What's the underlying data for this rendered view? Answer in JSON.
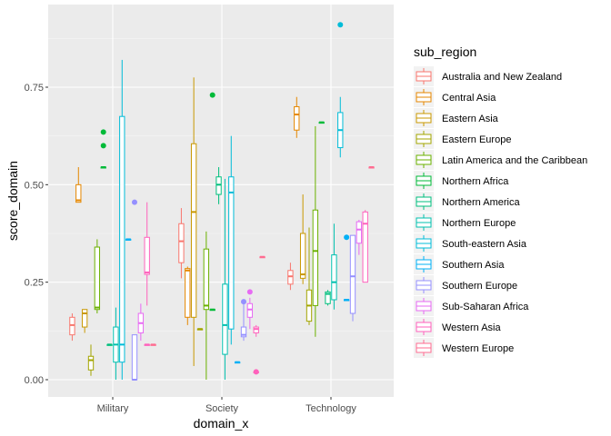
{
  "chart_data": {
    "type": "boxplot",
    "xlabel": "domain_x",
    "ylabel": "score_domain",
    "ylim": [
      -0.04,
      0.95
    ],
    "yticks": [
      0.0,
      0.25,
      0.5,
      0.75
    ],
    "ytick_labels": [
      "0.00",
      "0.25",
      "0.50",
      "0.75"
    ],
    "categories": [
      "Military",
      "Society",
      "Technology"
    ],
    "grid": true,
    "legend": {
      "title": "sub_region",
      "placement": "right"
    },
    "series": [
      {
        "name": "Australia and New Zealand",
        "color": "#F8766D",
        "boxes": [
          {
            "category": "Military",
            "min": 0.1,
            "q1": 0.115,
            "median": 0.14,
            "q3": 0.16,
            "max": 0.17,
            "outliers": []
          },
          {
            "category": "Society",
            "min": 0.26,
            "q1": 0.3,
            "median": 0.355,
            "q3": 0.4,
            "max": 0.44,
            "outliers": []
          },
          {
            "category": "Technology",
            "min": 0.23,
            "q1": 0.245,
            "median": 0.265,
            "q3": 0.28,
            "max": 0.3,
            "outliers": []
          }
        ]
      },
      {
        "name": "Central Asia",
        "color": "#E58700",
        "boxes": [
          {
            "category": "Military",
            "min": 0.455,
            "q1": 0.455,
            "median": 0.46,
            "q3": 0.5,
            "max": 0.545,
            "outliers": []
          },
          {
            "category": "Society",
            "min": 0.14,
            "q1": 0.16,
            "median": 0.28,
            "q3": 0.285,
            "max": 0.29,
            "outliers": []
          },
          {
            "category": "Technology",
            "min": 0.62,
            "q1": 0.64,
            "median": 0.68,
            "q3": 0.7,
            "max": 0.725,
            "outliers": []
          }
        ]
      },
      {
        "name": "Eastern Asia",
        "color": "#C99800",
        "boxes": [
          {
            "category": "Military",
            "min": 0.12,
            "q1": 0.135,
            "median": 0.17,
            "q3": 0.18,
            "max": 0.18,
            "outliers": []
          },
          {
            "category": "Society",
            "min": 0.035,
            "q1": 0.16,
            "median": 0.43,
            "q3": 0.605,
            "max": 0.775,
            "outliers": []
          },
          {
            "category": "Technology",
            "min": 0.245,
            "q1": 0.26,
            "median": 0.27,
            "q3": 0.375,
            "max": 0.475,
            "outliers": []
          }
        ]
      },
      {
        "name": "Eastern Europe",
        "color": "#A3A500",
        "boxes": [
          {
            "category": "Military",
            "min": 0.01,
            "q1": 0.025,
            "median": 0.05,
            "q3": 0.06,
            "max": 0.09,
            "outliers": []
          },
          {
            "category": "Society",
            "min": 0.13,
            "q1": 0.13,
            "median": 0.13,
            "q3": 0.13,
            "max": 0.13,
            "outliers": []
          },
          {
            "category": "Technology",
            "min": 0.14,
            "q1": 0.15,
            "median": 0.19,
            "q3": 0.23,
            "max": 0.39,
            "outliers": []
          }
        ]
      },
      {
        "name": "Latin America and the Caribbean",
        "color": "#6BB100",
        "boxes": [
          {
            "category": "Military",
            "min": 0.17,
            "q1": 0.18,
            "median": 0.185,
            "q3": 0.34,
            "max": 0.36,
            "outliers": []
          },
          {
            "category": "Society",
            "min": 0.0,
            "q1": 0.18,
            "median": 0.19,
            "q3": 0.335,
            "max": 0.38,
            "outliers": []
          },
          {
            "category": "Technology",
            "min": 0.11,
            "q1": 0.19,
            "median": 0.33,
            "q3": 0.435,
            "max": 0.65,
            "outliers": []
          }
        ]
      },
      {
        "name": "Northern Africa",
        "color": "#00BA38",
        "boxes": [
          {
            "category": "Military",
            "min": 0.545,
            "q1": 0.545,
            "median": 0.545,
            "q3": 0.545,
            "max": 0.545,
            "outliers": [
              0.6,
              0.635
            ]
          },
          {
            "category": "Society",
            "min": 0.18,
            "q1": 0.18,
            "median": 0.18,
            "q3": 0.18,
            "max": 0.18,
            "outliers": [
              0.73
            ]
          },
          {
            "category": "Technology",
            "min": 0.66,
            "q1": 0.66,
            "median": 0.66,
            "q3": 0.66,
            "max": 0.66,
            "outliers": []
          }
        ]
      },
      {
        "name": "Northern America",
        "color": "#00BF7D",
        "boxes": [
          {
            "category": "Military",
            "min": 0.09,
            "q1": 0.09,
            "median": 0.09,
            "q3": 0.09,
            "max": 0.09,
            "outliers": []
          },
          {
            "category": "Society",
            "min": 0.45,
            "q1": 0.475,
            "median": 0.5,
            "q3": 0.52,
            "max": 0.545,
            "outliers": []
          },
          {
            "category": "Technology",
            "min": 0.19,
            "q1": 0.195,
            "median": 0.22,
            "q3": 0.225,
            "max": 0.23,
            "outliers": []
          }
        ]
      },
      {
        "name": "Northern Europe",
        "color": "#00C0AF",
        "boxes": [
          {
            "category": "Military",
            "min": 0.0,
            "q1": 0.045,
            "median": 0.09,
            "q3": 0.135,
            "max": 0.185,
            "outliers": []
          },
          {
            "category": "Society",
            "min": 0.0,
            "q1": 0.065,
            "median": 0.14,
            "q3": 0.245,
            "max": 0.515,
            "outliers": []
          },
          {
            "category": "Technology",
            "min": 0.18,
            "q1": 0.205,
            "median": 0.25,
            "q3": 0.32,
            "max": 0.4,
            "outliers": []
          }
        ]
      },
      {
        "name": "South-eastern Asia",
        "color": "#00BCD8",
        "boxes": [
          {
            "category": "Military",
            "min": 0.0,
            "q1": 0.045,
            "median": 0.09,
            "q3": 0.675,
            "max": 0.82,
            "outliers": []
          },
          {
            "category": "Society",
            "min": 0.09,
            "q1": 0.13,
            "median": 0.48,
            "q3": 0.52,
            "max": 0.625,
            "outliers": []
          },
          {
            "category": "Technology",
            "min": 0.57,
            "q1": 0.595,
            "median": 0.64,
            "q3": 0.685,
            "max": 0.725,
            "outliers": [
              0.91
            ]
          }
        ]
      },
      {
        "name": "Southern Asia",
        "color": "#00B0F6",
        "boxes": [
          {
            "category": "Military",
            "min": 0.36,
            "q1": 0.36,
            "median": 0.36,
            "q3": 0.36,
            "max": 0.36,
            "outliers": []
          },
          {
            "category": "Society",
            "min": 0.045,
            "q1": 0.045,
            "median": 0.045,
            "q3": 0.045,
            "max": 0.045,
            "outliers": []
          },
          {
            "category": "Technology",
            "min": 0.205,
            "q1": 0.205,
            "median": 0.205,
            "q3": 0.205,
            "max": 0.205,
            "outliers": [
              0.365
            ]
          }
        ]
      },
      {
        "name": "Southern Europe",
        "color": "#9590FF",
        "boxes": [
          {
            "category": "Military",
            "min": 0.0,
            "q1": 0.0,
            "median": 0.0,
            "q3": 0.115,
            "max": 0.115,
            "outliers": [
              0.455
            ]
          },
          {
            "category": "Society",
            "min": 0.1,
            "q1": 0.11,
            "median": 0.115,
            "q3": 0.135,
            "max": 0.2,
            "outliers": [
              0.2
            ]
          },
          {
            "category": "Technology",
            "min": 0.15,
            "q1": 0.17,
            "median": 0.265,
            "q3": 0.37,
            "max": 0.37,
            "outliers": []
          }
        ]
      },
      {
        "name": "Sub-Saharan Africa",
        "color": "#D89000",
        "color_note": "",
        "boxes": []
      },
      {
        "name": "Western Asia",
        "color": "#FF62BC",
        "boxes": [
          {
            "category": "Military",
            "min": 0.09,
            "q1": 0.09,
            "median": 0.09,
            "q3": 0.09,
            "max": 0.09,
            "outliers": []
          },
          {
            "category": "Society",
            "min": 0.11,
            "q1": 0.12,
            "median": 0.13,
            "q3": 0.135,
            "max": 0.14,
            "outliers": []
          },
          {
            "category": "Technology",
            "min": 0.25,
            "q1": 0.25,
            "median": 0.4,
            "q3": 0.43,
            "max": 0.435,
            "outliers": []
          }
        ]
      },
      {
        "name": "Western Europe",
        "color": "#FF6C91",
        "boxes": [
          {
            "category": "Military",
            "min": 0.09,
            "q1": 0.09,
            "median": 0.09,
            "q3": 0.09,
            "max": 0.09,
            "outliers": []
          },
          {
            "category": "Society",
            "min": 0.315,
            "q1": 0.315,
            "median": 0.315,
            "q3": 0.315,
            "max": 0.315,
            "outliers": []
          },
          {
            "category": "Technology",
            "min": 0.545,
            "q1": 0.545,
            "median": 0.545,
            "q3": 0.545,
            "max": 0.545,
            "outliers": []
          }
        ]
      }
    ],
    "extra_boxes": [
      {
        "series": "Sub-Saharan Africa",
        "color": "#E76BF3",
        "boxes": [
          {
            "category": "Military",
            "min": 0.1,
            "q1": 0.12,
            "median": 0.145,
            "q3": 0.17,
            "max": 0.195,
            "outliers": []
          },
          {
            "category": "Society",
            "min": 0.13,
            "q1": 0.16,
            "median": 0.18,
            "q3": 0.195,
            "max": 0.21,
            "outliers": [
              0.225
            ]
          },
          {
            "category": "Technology",
            "min": 0.32,
            "q1": 0.35,
            "median": 0.385,
            "q3": 0.405,
            "max": 0.41,
            "outliers": []
          }
        ]
      },
      {
        "series": "Western Asia",
        "color": "#FF62BC",
        "boxes": [
          {
            "category": "Military",
            "min": 0.19,
            "q1": 0.27,
            "median": 0.275,
            "q3": 0.365,
            "max": 0.455,
            "outliers": []
          },
          {
            "category": "Society",
            "min": 0.02,
            "q1": 0.02,
            "median": 0.02,
            "q3": 0.02,
            "max": 0.02,
            "outliers": [
              0.02
            ]
          }
        ]
      }
    ]
  }
}
